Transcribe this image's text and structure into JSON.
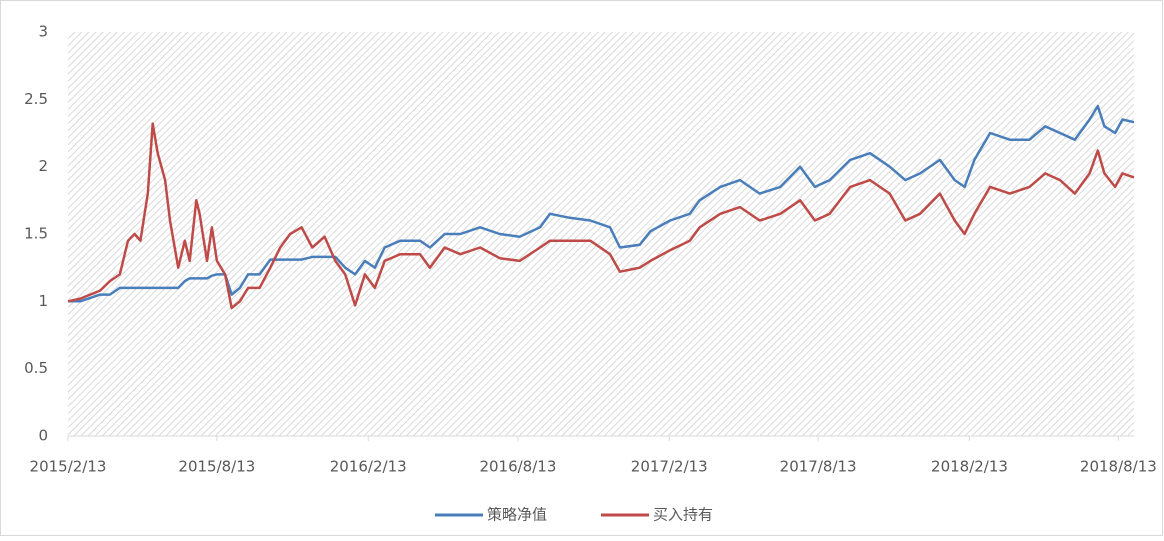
{
  "chart_data": {
    "type": "line",
    "x": [
      "2015/2/13",
      "2015/2/28",
      "2015/3/24",
      "2015/4/5",
      "2015/4/17",
      "2015/4/27",
      "2015/5/5",
      "2015/5/12",
      "2015/5/21",
      "2015/5/27",
      "2015/6/2",
      "2015/6/11",
      "2015/6/17",
      "2015/6/27",
      "2015/7/5",
      "2015/7/11",
      "2015/7/19",
      "2015/7/23",
      "2015/8/1",
      "2015/8/7",
      "2015/8/13",
      "2015/8/23",
      "2015/8/31",
      "2015/9/10",
      "2015/9/20",
      "2015/10/4",
      "2015/10/17",
      "2015/10/29",
      "2015/11/10",
      "2015/11/24",
      "2015/12/7",
      "2015/12/22",
      "2016/1/4",
      "2016/1/16",
      "2016/1/28",
      "2016/2/9",
      "2016/2/21",
      "2016/3/4",
      "2016/3/23",
      "2016/4/16",
      "2016/4/28",
      "2016/5/16",
      "2016/6/4",
      "2016/6/28",
      "2016/7/22",
      "2016/8/15",
      "2016/9/9",
      "2016/9/21",
      "2016/10/15",
      "2016/11/9",
      "2016/12/3",
      "2016/12/15",
      "2017/1/8",
      "2017/1/21",
      "2017/2/14",
      "2017/3/10",
      "2017/3/22",
      "2017/4/16",
      "2017/5/10",
      "2017/6/3",
      "2017/6/28",
      "2017/7/22",
      "2017/8/9",
      "2017/8/27",
      "2017/9/21",
      "2017/10/15",
      "2017/11/8",
      "2017/11/27",
      "2017/12/15",
      "2018/1/8",
      "2018/1/26",
      "2018/2/7",
      "2018/2/19",
      "2018/3/10",
      "2018/4/3",
      "2018/4/27",
      "2018/5/16",
      "2018/6/3",
      "2018/6/21",
      "2018/7/9",
      "2018/7/19",
      "2018/7/27",
      "2018/8/9",
      "2018/8/18",
      "2018/9/1"
    ],
    "series": [
      {
        "name": "策略净值",
        "color": "#4a7ebb",
        "values": [
          1.0,
          1.0,
          1.05,
          1.05,
          1.1,
          1.1,
          1.1,
          1.1,
          1.1,
          1.1,
          1.1,
          1.1,
          1.1,
          1.1,
          1.15,
          1.17,
          1.17,
          1.17,
          1.17,
          1.19,
          1.2,
          1.2,
          1.05,
          1.1,
          1.2,
          1.2,
          1.31,
          1.31,
          1.31,
          1.31,
          1.33,
          1.33,
          1.33,
          1.25,
          1.2,
          1.3,
          1.25,
          1.4,
          1.45,
          1.45,
          1.4,
          1.5,
          1.5,
          1.55,
          1.5,
          1.48,
          1.55,
          1.65,
          1.62,
          1.6,
          1.55,
          1.4,
          1.42,
          1.52,
          1.6,
          1.65,
          1.75,
          1.85,
          1.9,
          1.8,
          1.85,
          2.0,
          1.85,
          1.9,
          2.05,
          2.1,
          2.0,
          1.9,
          1.95,
          2.05,
          1.9,
          1.85,
          2.05,
          2.25,
          2.2,
          2.2,
          2.3,
          2.25,
          2.2,
          2.35,
          2.45,
          2.3,
          2.25,
          2.35,
          2.33
        ]
      },
      {
        "name": "买入持有",
        "color": "#be4b48",
        "values": [
          1.0,
          1.02,
          1.08,
          1.15,
          1.2,
          1.45,
          1.5,
          1.45,
          1.8,
          2.32,
          2.1,
          1.9,
          1.6,
          1.25,
          1.45,
          1.3,
          1.75,
          1.65,
          1.3,
          1.55,
          1.3,
          1.2,
          0.95,
          1.0,
          1.1,
          1.1,
          1.25,
          1.4,
          1.5,
          1.55,
          1.4,
          1.48,
          1.3,
          1.2,
          0.97,
          1.2,
          1.1,
          1.3,
          1.35,
          1.35,
          1.25,
          1.4,
          1.35,
          1.4,
          1.32,
          1.3,
          1.4,
          1.45,
          1.45,
          1.45,
          1.35,
          1.22,
          1.25,
          1.3,
          1.38,
          1.45,
          1.55,
          1.65,
          1.7,
          1.6,
          1.65,
          1.75,
          1.6,
          1.65,
          1.85,
          1.9,
          1.8,
          1.6,
          1.65,
          1.8,
          1.6,
          1.5,
          1.65,
          1.85,
          1.8,
          1.85,
          1.95,
          1.9,
          1.8,
          1.95,
          2.12,
          1.95,
          1.85,
          1.95,
          1.92
        ]
      }
    ],
    "xlim": [
      "2015/2/13",
      "2018/9/1"
    ],
    "xticks": [
      "2015/2/13",
      "2015/8/13",
      "2016/2/13",
      "2016/8/13",
      "2017/2/13",
      "2017/8/13",
      "2018/2/13",
      "2018/8/13"
    ],
    "ylim": [
      0,
      3
    ],
    "yticks": [
      0,
      0.5,
      1,
      1.5,
      2,
      2.5,
      3
    ],
    "grid": false,
    "legend": "bottom"
  }
}
